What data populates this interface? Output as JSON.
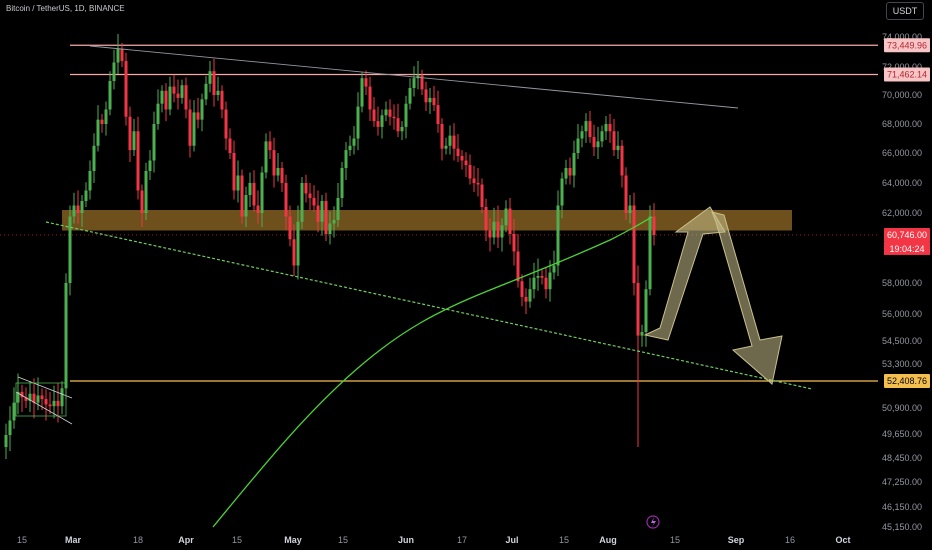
{
  "header": {
    "title": "Bitcoin / TetherUS, 1D, BINANCE",
    "currency": "USDT"
  },
  "chart_data": {
    "type": "candlestick",
    "symbol": "Bitcoin / TetherUS",
    "interval": "1D",
    "exchange": "BINANCE",
    "y_ticks": [
      "74,000.00",
      "72,000.00",
      "70,000.00",
      "68,000.00",
      "66,000.00",
      "64,000.00",
      "62,000.00",
      "58,000.00",
      "56,000.00",
      "54,500.00",
      "53,300.00",
      "50,900.00",
      "49,650.00",
      "48,450.00",
      "47,250.00",
      "46,150.00",
      "45,150.00"
    ],
    "x_ticks": [
      {
        "label": "15",
        "bold": false
      },
      {
        "label": "Mar",
        "bold": true
      },
      {
        "label": "18",
        "bold": false
      },
      {
        "label": "Apr",
        "bold": true
      },
      {
        "label": "15",
        "bold": false
      },
      {
        "label": "May",
        "bold": true
      },
      {
        "label": "15",
        "bold": false
      },
      {
        "label": "Jun",
        "bold": true
      },
      {
        "label": "17",
        "bold": false
      },
      {
        "label": "Jul",
        "bold": true
      },
      {
        "label": "15",
        "bold": false
      },
      {
        "label": "Aug",
        "bold": true
      },
      {
        "label": "15",
        "bold": false
      },
      {
        "label": "Sep",
        "bold": true
      },
      {
        "label": "16",
        "bold": false
      },
      {
        "label": "Oct",
        "bold": true
      }
    ],
    "price_tags": [
      {
        "label": "73,449.96",
        "value": 73449.96,
        "bg": "#f7c5c5",
        "fg": "#b22833"
      },
      {
        "label": "71,462.14",
        "value": 71462.14,
        "bg": "#f7c5c5",
        "fg": "#b22833"
      },
      {
        "label": "60,746.00",
        "value": 60746.0,
        "bg": "#f23645",
        "fg": "#ffffff"
      },
      {
        "label": "52,408.76",
        "value": 52408.76,
        "bg": "#f5bf4f",
        "fg": "#000000"
      }
    ],
    "countdown": "19:04:24",
    "horizontal_levels": [
      {
        "value": 73449.96,
        "color": "#f7a9a9"
      },
      {
        "value": 71462.14,
        "color": "#f7a9a9"
      },
      {
        "value": 52408.76,
        "color": "#f5bf4f"
      }
    ],
    "support_zone": {
      "from": 61000,
      "to": 62200,
      "color": "#b8862f"
    },
    "colors": {
      "up": "#4caf50",
      "down": "#f23645",
      "ma": "#4cd137",
      "trendline_up": "#6ecf5f",
      "arrow": "#c9c08c"
    }
  }
}
